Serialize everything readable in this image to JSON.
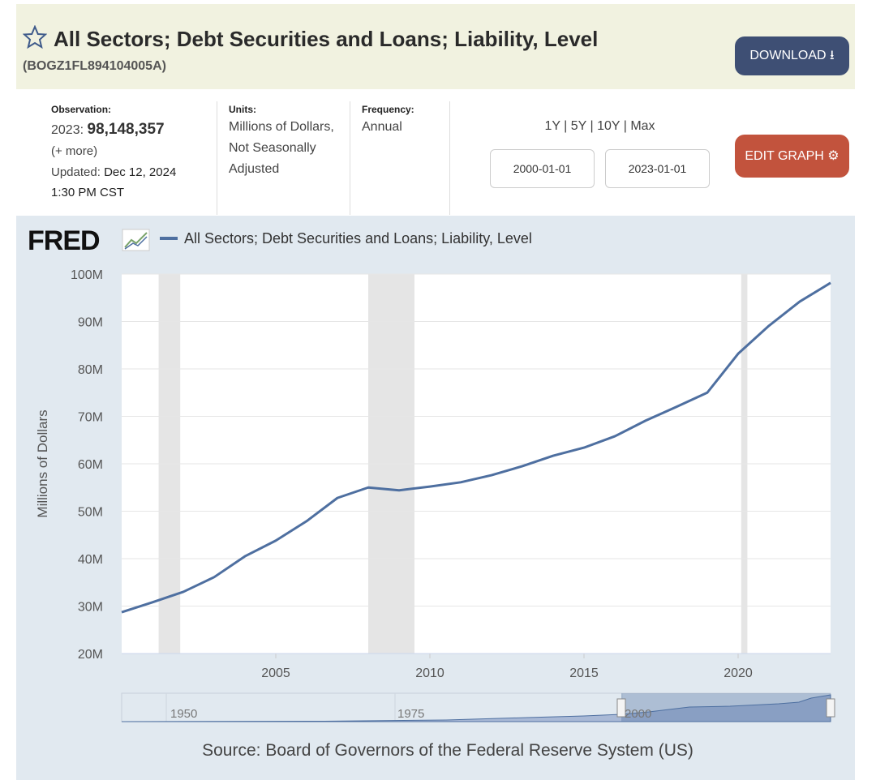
{
  "header": {
    "title": "All Sectors; Debt Securities and Loans; Liability, Level",
    "series_id": "(BOGZ1FL894104005A)",
    "download": "DOWNLOAD"
  },
  "info": {
    "observation_label": "Observation:",
    "observation_period": "2023:",
    "observation_value": "98,148,357",
    "more": "(+ more)",
    "updated_label": "Updated:",
    "updated_date": "Dec 12, 2024",
    "updated_time": "1:30 PM CST",
    "units_label": "Units:",
    "units": "Millions of Dollars, Not Seasonally Adjusted",
    "frequency_label": "Frequency:",
    "frequency": "Annual",
    "ranges": [
      "1Y",
      "5Y",
      "10Y",
      "Max"
    ],
    "start_date": "2000-01-01",
    "end_date": "2023-01-01",
    "edit_graph": "EDIT GRAPH"
  },
  "chart_data": {
    "type": "line",
    "logo": "FRED",
    "y_label": "Millions of Dollars",
    "source": "Source: Board of Governors of the Federal Reserve System (US)",
    "x": [
      2000,
      2001,
      2002,
      2003,
      2004,
      2005,
      2006,
      2007,
      2008,
      2009,
      2010,
      2011,
      2012,
      2013,
      2014,
      2015,
      2016,
      2017,
      2018,
      2019,
      2020,
      2021,
      2022,
      2023
    ],
    "series": [
      {
        "name": "All Sectors; Debt Securities and Loans; Liability, Level",
        "color": "#4e6fa0",
        "values": [
          28700000,
          30800000,
          33000000,
          36100000,
          40500000,
          43800000,
          47900000,
          52800000,
          55000000,
          54400000,
          55200000,
          56100000,
          57600000,
          59500000,
          61700000,
          63400000,
          65800000,
          69100000,
          72000000,
          75000000,
          83200000,
          89100000,
          94200000,
          98148357
        ]
      }
    ],
    "recessions": [
      [
        2001.2,
        2001.9
      ],
      [
        2008.0,
        2009.5
      ],
      [
        2020.1,
        2020.3
      ]
    ],
    "xlim": [
      2000,
      2023
    ],
    "xticks": [
      2005,
      2010,
      2015,
      2020
    ],
    "ylim": [
      20000000,
      100000000
    ],
    "yticks": [
      {
        "value": 20000000,
        "label": "20M"
      },
      {
        "value": 30000000,
        "label": "30M"
      },
      {
        "value": 40000000,
        "label": "40M"
      },
      {
        "value": 50000000,
        "label": "50M"
      },
      {
        "value": 60000000,
        "label": "60M"
      },
      {
        "value": 70000000,
        "label": "70M"
      },
      {
        "value": 80000000,
        "label": "80M"
      },
      {
        "value": 90000000,
        "label": "90M"
      },
      {
        "value": 100000000,
        "label": "100M"
      }
    ],
    "grid": true,
    "navigator_labels": [
      "1950",
      "1975",
      "2000"
    ]
  }
}
